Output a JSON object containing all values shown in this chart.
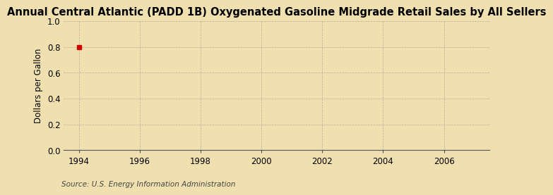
{
  "title": "Annual Central Atlantic (PADD 1B) Oxygenated Gasoline Midgrade Retail Sales by All Sellers",
  "ylabel": "Dollars per Gallon",
  "xlabel": "",
  "xlim": [
    1993.5,
    2007.5
  ],
  "ylim": [
    0.0,
    1.0
  ],
  "xticks": [
    1994,
    1996,
    1998,
    2000,
    2002,
    2004,
    2006
  ],
  "yticks": [
    0.0,
    0.2,
    0.4,
    0.6,
    0.8,
    1.0
  ],
  "background_color": "#f0e0b0",
  "plot_background_color": "#f0e0b0",
  "grid_color": "#999999",
  "title_fontsize": 10.5,
  "axis_fontsize": 8.5,
  "tick_fontsize": 8.5,
  "source_text": "Source: U.S. Energy Information Administration",
  "data_x": [
    1994
  ],
  "data_y": [
    0.8
  ]
}
